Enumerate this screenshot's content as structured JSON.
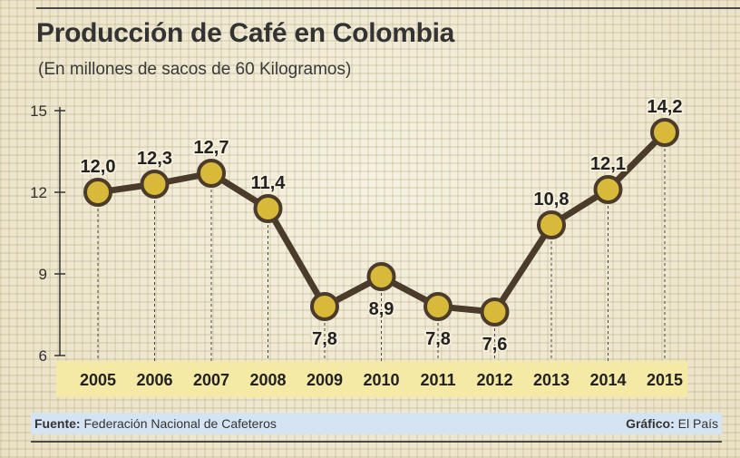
{
  "header": {
    "title": "Producción de Café en Colombia",
    "subtitle": "(En millones de sacos de 60 Kilogramos)"
  },
  "footer": {
    "source_label": "Fuente:",
    "source_value": "Federación Nacional de Cafeteros",
    "credit_label": "Gráfico:",
    "credit_value": "El País"
  },
  "colors": {
    "line": "#4a3b2a",
    "marker_fill": "#d9b93a",
    "year_band": "#f5e9a6",
    "text": "#222222"
  },
  "chart_data": {
    "type": "line",
    "title": "Producción de Café en Colombia",
    "subtitle": "(En millones de sacos de 60 Kilogramos)",
    "categories": [
      "2005",
      "2006",
      "2007",
      "2008",
      "2009",
      "2010",
      "2011",
      "2012",
      "2013",
      "2014",
      "2015"
    ],
    "values": [
      12.0,
      12.3,
      12.7,
      11.4,
      7.8,
      8.9,
      7.8,
      7.6,
      10.8,
      12.1,
      14.2
    ],
    "value_labels": [
      "12,0",
      "12,3",
      "12,7",
      "11,4",
      "7,8",
      "8,9",
      "7,8",
      "7,6",
      "10,8",
      "12,1",
      "14,2"
    ],
    "y_ticks": [
      "6",
      "9",
      "12",
      "15"
    ],
    "ylim": [
      6,
      15
    ],
    "grid": false,
    "legend": "none"
  }
}
